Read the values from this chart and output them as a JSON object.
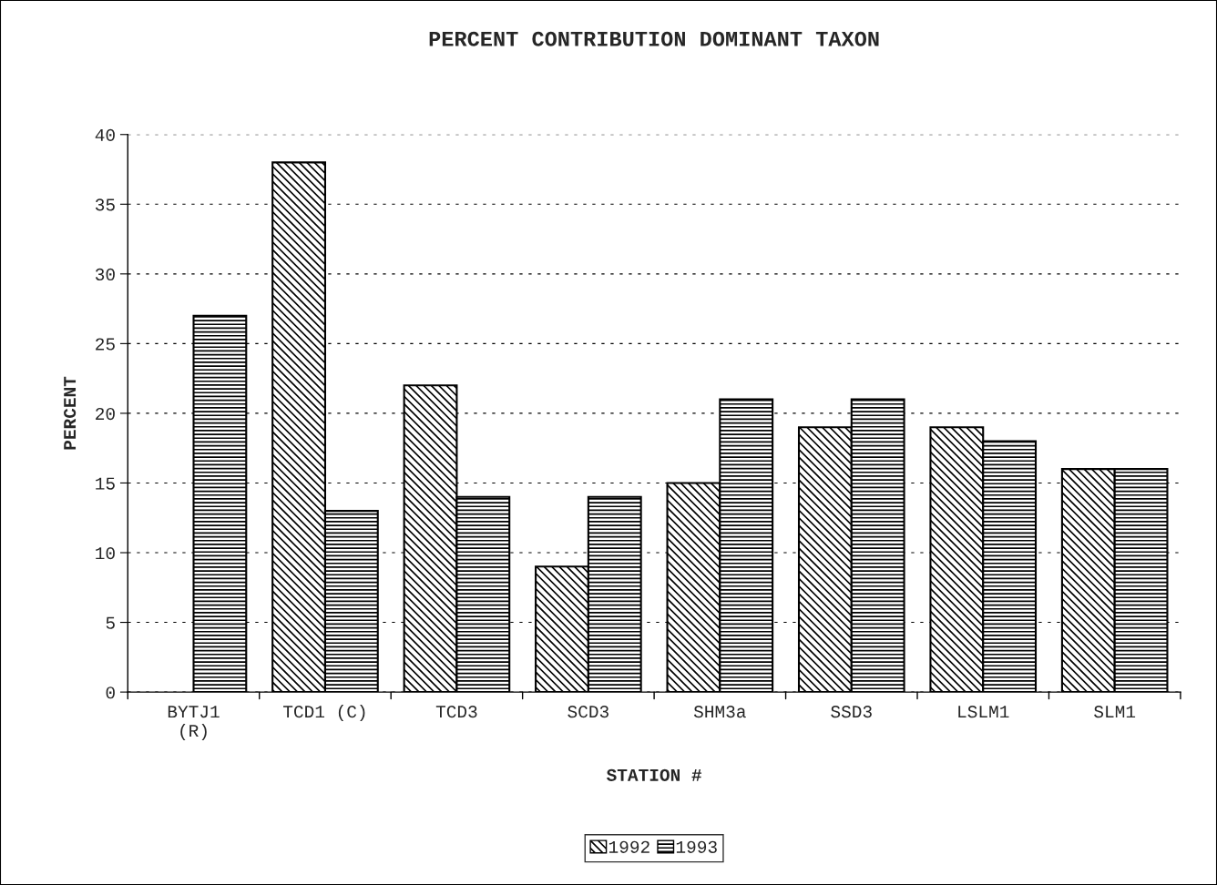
{
  "chart_data": {
    "type": "bar",
    "title": "PERCENT CONTRIBUTION DOMINANT TAXON",
    "xlabel": "STATION #",
    "ylabel": "PERCENT",
    "categories": [
      "BYTJ1\n(R)",
      "TCD1 (C)",
      "TCD3",
      "SCD3",
      "SHM3a",
      "SSD3",
      "LSLM1",
      "SLM1"
    ],
    "series": [
      {
        "name": "1992",
        "color": "#000000",
        "values": [
          null,
          38,
          22,
          9,
          15,
          19,
          19,
          16
        ]
      },
      {
        "name": "1993",
        "color": "#000000",
        "values": [
          27,
          13,
          14,
          14,
          21,
          21,
          18,
          16
        ]
      }
    ],
    "ylim": [
      0,
      40
    ],
    "yticks": [
      0,
      5,
      10,
      15,
      20,
      25,
      30,
      35,
      40
    ],
    "grid": "y",
    "legend": "bottom"
  }
}
